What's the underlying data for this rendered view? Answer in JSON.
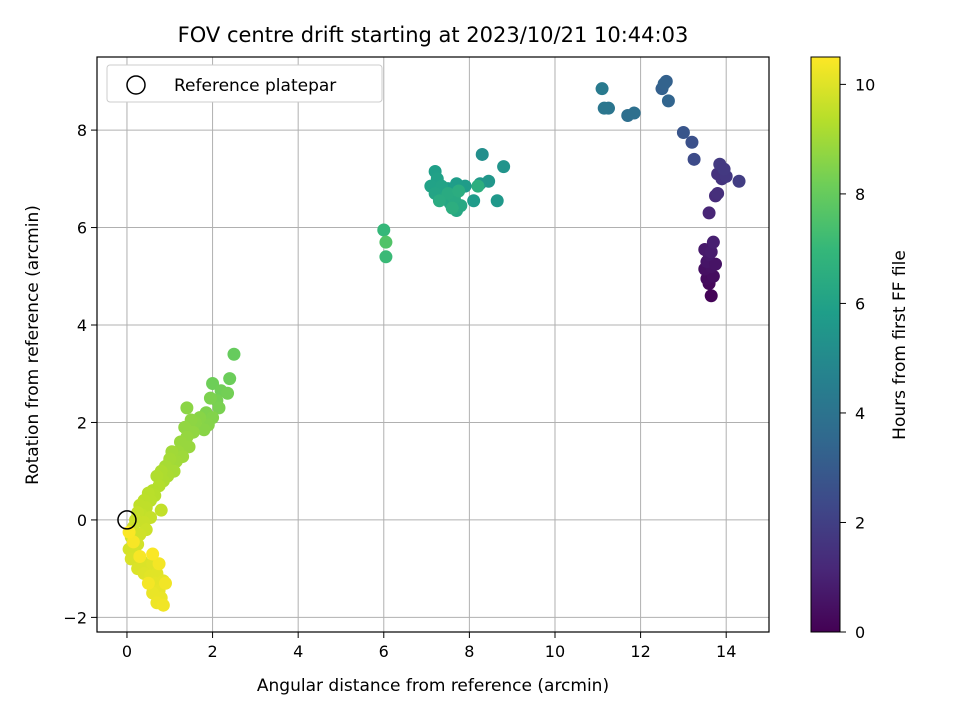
{
  "chart_data": {
    "type": "scatter",
    "title": "FOV centre drift starting at 2023/10/21 10:44:03",
    "xlabel": "Angular distance from reference (arcmin)",
    "ylabel": "Rotation from reference (arcmin)",
    "xlim": [
      -0.7,
      15.0
    ],
    "ylim": [
      -2.3,
      9.5
    ],
    "xticks": [
      0,
      2,
      4,
      6,
      8,
      10,
      12,
      14
    ],
    "yticks": [
      -2,
      0,
      2,
      4,
      6,
      8
    ],
    "grid": true,
    "legend": {
      "position": "top-left",
      "entries": [
        {
          "label": "Reference platepar",
          "marker": "open-circle"
        }
      ]
    },
    "reference_point": {
      "x": 0,
      "y": 0
    },
    "colorbar": {
      "label": "Hours from first FF file",
      "min": 0,
      "max": 10.5,
      "ticks": [
        0,
        2,
        4,
        6,
        8,
        10
      ],
      "colormap": "viridis"
    },
    "colormap_stops": [
      "#440154",
      "#482878",
      "#3e4989",
      "#31688e",
      "#26828e",
      "#1f9e89",
      "#35b779",
      "#6ece58",
      "#b5de2b",
      "#fde725"
    ],
    "points": [
      [
        13.65,
        4.6,
        0.1
      ],
      [
        13.6,
        4.85,
        0.2
      ],
      [
        13.55,
        4.95,
        0.3
      ],
      [
        13.7,
        5.0,
        0.35
      ],
      [
        13.5,
        5.15,
        0.45
      ],
      [
        13.65,
        5.2,
        0.5
      ],
      [
        13.55,
        5.3,
        0.6
      ],
      [
        13.75,
        5.25,
        0.55
      ],
      [
        13.6,
        5.45,
        0.7
      ],
      [
        13.5,
        5.55,
        0.75
      ],
      [
        13.65,
        5.5,
        0.8
      ],
      [
        13.7,
        5.7,
        0.9
      ],
      [
        13.6,
        6.3,
        1.1
      ],
      [
        13.75,
        6.65,
        1.3
      ],
      [
        13.8,
        6.7,
        1.4
      ],
      [
        13.9,
        7.0,
        1.6
      ],
      [
        13.8,
        7.1,
        1.5
      ],
      [
        14.0,
        7.05,
        1.7
      ],
      [
        13.85,
        7.3,
        1.8
      ],
      [
        14.3,
        6.95,
        1.9
      ],
      [
        13.95,
        7.2,
        1.75
      ],
      [
        13.25,
        7.4,
        2.4
      ],
      [
        13.2,
        7.75,
        2.6
      ],
      [
        13.0,
        7.95,
        2.8
      ],
      [
        12.5,
        8.85,
        3.2
      ],
      [
        12.6,
        9.0,
        3.25
      ],
      [
        12.55,
        8.95,
        3.3
      ],
      [
        12.65,
        8.6,
        3.4
      ],
      [
        11.7,
        8.3,
        3.8
      ],
      [
        11.85,
        8.35,
        3.85
      ],
      [
        11.25,
        8.45,
        4.1
      ],
      [
        11.15,
        8.45,
        4.15
      ],
      [
        11.1,
        8.85,
        4.3
      ],
      [
        8.3,
        7.5,
        5.2
      ],
      [
        8.8,
        7.25,
        5.4
      ],
      [
        8.45,
        6.95,
        5.5
      ],
      [
        8.25,
        6.9,
        5.55
      ],
      [
        8.65,
        6.55,
        5.6
      ],
      [
        8.1,
        6.55,
        5.7
      ],
      [
        7.9,
        6.85,
        5.75
      ],
      [
        7.7,
        6.9,
        5.8
      ],
      [
        7.5,
        6.8,
        5.85
      ],
      [
        7.2,
        7.15,
        5.9
      ],
      [
        7.25,
        7.0,
        5.95
      ],
      [
        7.1,
        6.85,
        6.0
      ],
      [
        7.35,
        6.85,
        6.05
      ],
      [
        7.2,
        6.7,
        6.1
      ],
      [
        7.4,
        6.6,
        6.15
      ],
      [
        7.55,
        6.5,
        6.2
      ],
      [
        7.7,
        6.35,
        6.25
      ],
      [
        7.8,
        6.45,
        6.3
      ],
      [
        7.65,
        6.6,
        6.35
      ],
      [
        7.5,
        6.7,
        6.4
      ],
      [
        7.3,
        6.55,
        6.45
      ],
      [
        7.75,
        6.75,
        6.5
      ],
      [
        7.6,
        6.4,
        6.55
      ],
      [
        8.2,
        6.85,
        6.6
      ],
      [
        6.0,
        5.95,
        7.0
      ],
      [
        6.05,
        5.4,
        7.1
      ],
      [
        6.05,
        5.7,
        7.6
      ],
      [
        2.5,
        3.4,
        8.0
      ],
      [
        2.4,
        2.9,
        8.1
      ],
      [
        2.0,
        2.8,
        8.15
      ],
      [
        2.2,
        2.65,
        8.2
      ],
      [
        2.35,
        2.6,
        8.25
      ],
      [
        2.1,
        2.45,
        8.3
      ],
      [
        2.15,
        2.3,
        8.35
      ],
      [
        1.95,
        2.5,
        8.4
      ],
      [
        1.85,
        2.2,
        8.45
      ],
      [
        2.0,
        2.1,
        8.5
      ],
      [
        1.9,
        1.95,
        8.55
      ],
      [
        1.7,
        2.1,
        8.6
      ],
      [
        1.8,
        1.85,
        8.6
      ],
      [
        1.6,
        2.0,
        8.65
      ],
      [
        1.4,
        2.3,
        8.65
      ],
      [
        1.5,
        2.05,
        8.7
      ],
      [
        1.35,
        1.9,
        8.75
      ],
      [
        1.55,
        1.8,
        8.75
      ],
      [
        1.4,
        1.7,
        8.8
      ],
      [
        1.25,
        1.6,
        8.85
      ],
      [
        1.45,
        1.5,
        8.85
      ],
      [
        1.2,
        1.4,
        8.9
      ],
      [
        1.3,
        1.3,
        8.95
      ],
      [
        1.05,
        1.4,
        9.0
      ],
      [
        1.15,
        1.2,
        9.0
      ],
      [
        1.0,
        1.25,
        9.05
      ],
      [
        1.1,
        1.0,
        9.1
      ],
      [
        0.9,
        1.1,
        9.1
      ],
      [
        0.95,
        0.9,
        9.15
      ],
      [
        0.8,
        1.0,
        9.2
      ],
      [
        0.85,
        0.8,
        9.2
      ],
      [
        0.7,
        0.9,
        9.25
      ],
      [
        0.75,
        0.7,
        9.3
      ],
      [
        0.6,
        0.6,
        9.3
      ],
      [
        0.65,
        0.5,
        9.35
      ],
      [
        0.5,
        0.55,
        9.4
      ],
      [
        0.55,
        0.4,
        9.4
      ],
      [
        0.4,
        0.4,
        9.45
      ],
      [
        0.45,
        0.25,
        9.5
      ],
      [
        0.3,
        0.3,
        9.5
      ],
      [
        0.8,
        0.2,
        9.55
      ],
      [
        0.35,
        0.1,
        9.55
      ],
      [
        0.55,
        0.05,
        9.6
      ],
      [
        0.25,
        0.15,
        9.6
      ],
      [
        0.4,
        -0.05,
        9.65
      ],
      [
        0.2,
        0.0,
        9.65
      ],
      [
        0.45,
        -0.2,
        9.7
      ],
      [
        0.15,
        -0.15,
        9.7
      ],
      [
        0.3,
        -0.3,
        9.75
      ],
      [
        0.1,
        -0.35,
        9.75
      ],
      [
        0.25,
        -0.5,
        9.8
      ],
      [
        0.05,
        -0.6,
        9.85
      ],
      [
        0.2,
        -0.7,
        9.85
      ],
      [
        0.1,
        -0.8,
        9.9
      ],
      [
        0.35,
        -0.85,
        9.9
      ],
      [
        0.25,
        -1.0,
        9.95
      ],
      [
        0.45,
        -0.95,
        9.95
      ],
      [
        0.6,
        -0.9,
        10.0
      ],
      [
        0.4,
        -1.1,
        10.0
      ],
      [
        0.55,
        -1.15,
        10.05
      ],
      [
        0.7,
        -1.1,
        10.05
      ],
      [
        0.65,
        -1.3,
        10.1
      ],
      [
        0.85,
        -1.25,
        10.1
      ],
      [
        0.75,
        -1.45,
        10.15
      ],
      [
        0.6,
        -1.5,
        10.2
      ],
      [
        0.8,
        -1.6,
        10.2
      ],
      [
        0.7,
        -1.7,
        10.25
      ],
      [
        0.85,
        -1.75,
        10.3
      ],
      [
        0.9,
        -1.3,
        10.3
      ],
      [
        0.75,
        -0.9,
        10.35
      ],
      [
        0.5,
        -1.3,
        10.35
      ],
      [
        0.3,
        -0.75,
        10.4
      ],
      [
        0.15,
        -0.45,
        10.4
      ],
      [
        0.05,
        -0.25,
        10.45
      ],
      [
        0.6,
        -0.7,
        10.45
      ]
    ]
  }
}
